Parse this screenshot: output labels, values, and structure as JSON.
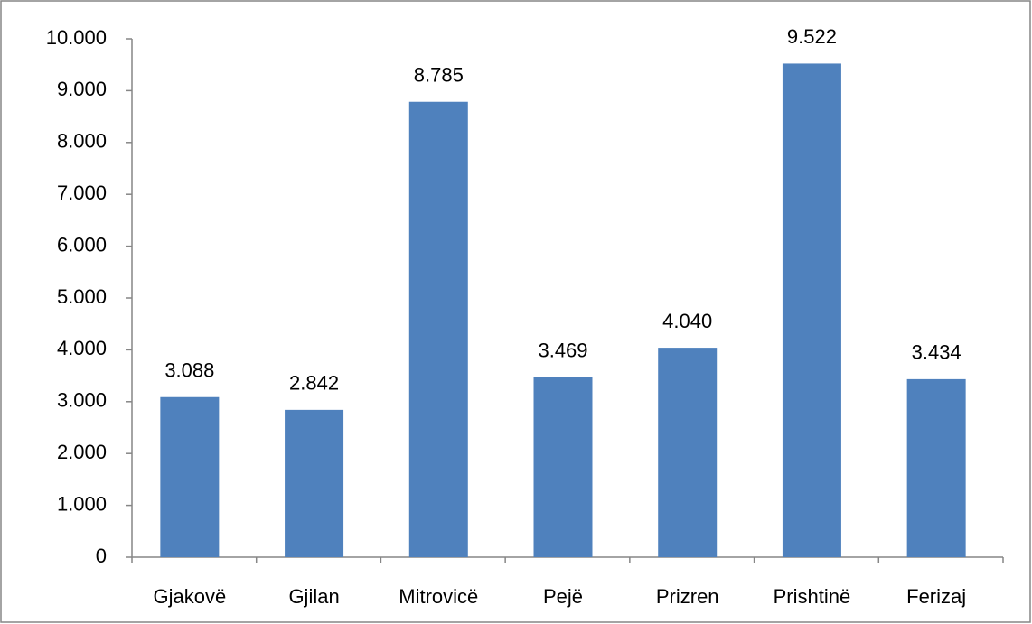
{
  "chart_data": {
    "type": "bar",
    "categories": [
      "Gjakovë",
      "Gjilan",
      "Mitrovicë",
      "Pejë",
      "Prizren",
      "Prishtinë",
      "Ferizaj"
    ],
    "values": [
      3088,
      2842,
      8785,
      3469,
      4040,
      9522,
      3434
    ],
    "value_labels": [
      "3.088",
      "2.842",
      "8.785",
      "3.469",
      "4.040",
      "9.522",
      "3.434"
    ],
    "color": "#4f81bd",
    "ylim": [
      0,
      10000
    ],
    "yticks": [
      0,
      {
        "value": 1000,
        "label": "1.000"
      },
      {
        "value": 2000,
        "label": "2.000"
      },
      {
        "value": 3000,
        "label": "3.000"
      },
      {
        "value": 4000,
        "label": "4.000"
      },
      {
        "value": 5000,
        "label": "5.000"
      },
      {
        "value": 6000,
        "label": "6.000"
      },
      {
        "value": 7000,
        "label": "7.000"
      },
      {
        "value": 8000,
        "label": "8.000"
      },
      {
        "value": 9000,
        "label": "9.000"
      },
      {
        "value": 10000,
        "label": "10.000"
      }
    ],
    "grid": false
  }
}
